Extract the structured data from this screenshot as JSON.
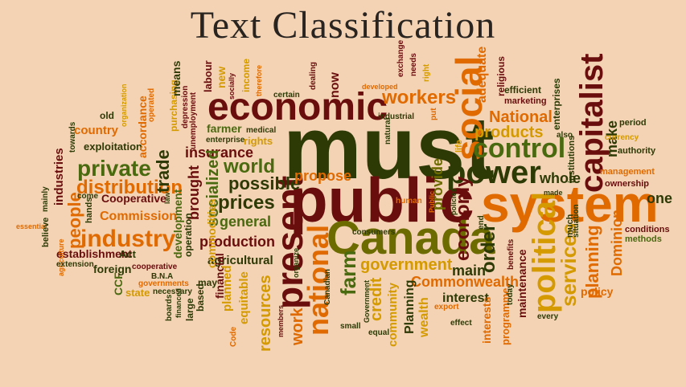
{
  "title": "Text Classification",
  "colors": {
    "background": "#f3d3b4",
    "dark_green": "#2e3a06",
    "olive": "#6b6b00",
    "dark_red": "#6a0d0d",
    "orange": "#e06a00",
    "gold": "#d49a00",
    "green": "#4a6a10"
  },
  "words": [
    {
      "text": "must",
      "color": "#2e3a06"
    },
    {
      "text": "system",
      "color": "#e06a00"
    },
    {
      "text": "public",
      "color": "#6a0d0d"
    },
    {
      "text": "Canada",
      "color": "#6b6b00"
    },
    {
      "text": "economic",
      "color": "#6a0d0d"
    },
    {
      "text": "social",
      "color": "#e06a00"
    },
    {
      "text": "power",
      "color": "#2e3a06"
    },
    {
      "text": "control",
      "color": "#4a6a10"
    },
    {
      "text": "present",
      "color": "#6a0d0d"
    },
    {
      "text": "capitalist",
      "color": "#6a0d0d"
    },
    {
      "text": "political",
      "color": "#d49a00"
    },
    {
      "text": "national",
      "color": "#e06a00"
    },
    {
      "text": "industry",
      "color": "#e06a00"
    },
    {
      "text": "private",
      "color": "#4a6a10"
    },
    {
      "text": "distribution",
      "color": "#e06a00"
    },
    {
      "text": "workers",
      "color": "#e06a00"
    },
    {
      "text": "government",
      "color": "#d49a00"
    },
    {
      "text": "Commonwealth",
      "color": "#e06a00"
    },
    {
      "text": "world",
      "color": "#4a6a10"
    },
    {
      "text": "possible",
      "color": "#2e3a06"
    },
    {
      "text": "prices",
      "color": "#2e3a06"
    },
    {
      "text": "services",
      "color": "#d49a00"
    },
    {
      "text": "production",
      "color": "#6a0d0d"
    },
    {
      "text": "National",
      "color": "#e06a00"
    },
    {
      "text": "products",
      "color": "#d49a00"
    },
    {
      "text": "planning",
      "color": "#e06a00"
    },
    {
      "text": "economy",
      "color": "#6a0d0d"
    },
    {
      "text": "order",
      "color": "#2e3a06"
    },
    {
      "text": "farm",
      "color": "#4a6a10"
    },
    {
      "text": "trade",
      "color": "#2e3a06"
    },
    {
      "text": "insurance",
      "color": "#6a0d0d"
    },
    {
      "text": "socialized",
      "color": "#4a6a10"
    },
    {
      "text": "brought",
      "color": "#6a0d0d"
    },
    {
      "text": "propose",
      "color": "#e06a00"
    },
    {
      "text": "general",
      "color": "#4a6a10"
    },
    {
      "text": "people",
      "color": "#e06a00"
    },
    {
      "text": "whole",
      "color": "#2e3a06"
    },
    {
      "text": "credit",
      "color": "#d49a00"
    },
    {
      "text": "work",
      "color": "#e06a00"
    },
    {
      "text": "resources",
      "color": "#d49a00"
    },
    {
      "text": "main",
      "color": "#2e3a06"
    },
    {
      "text": "interest",
      "color": "#2e3a06"
    },
    {
      "text": "one",
      "color": "#2e3a06"
    },
    {
      "text": "Dominion",
      "color": "#e06a00"
    },
    {
      "text": "make",
      "color": "#2e3a06"
    },
    {
      "text": "provide",
      "color": "#6b6b00"
    },
    {
      "text": "adequate",
      "color": "#e06a00"
    },
    {
      "text": "now",
      "color": "#6a0d0d"
    },
    {
      "text": "Commission",
      "color": "#e06a00"
    },
    {
      "text": "Cooperative",
      "color": "#6a0d0d"
    },
    {
      "text": "exploitation",
      "color": "#2e3a06"
    },
    {
      "text": "country",
      "color": "#e06a00"
    },
    {
      "text": "industries",
      "color": "#6a0d0d"
    },
    {
      "text": "establishment",
      "color": "#6a0d0d"
    },
    {
      "text": "agricultural",
      "color": "#2e3a06"
    },
    {
      "text": "financial",
      "color": "#6a0d0d"
    },
    {
      "text": "planned",
      "color": "#d49a00"
    },
    {
      "text": "equitable",
      "color": "#d49a00"
    },
    {
      "text": "commodities",
      "color": "#d49a00"
    },
    {
      "text": "development",
      "color": "#4a6a10"
    },
    {
      "text": "wealth",
      "color": "#d49a00"
    },
    {
      "text": "community",
      "color": "#d49a00"
    },
    {
      "text": "Planning",
      "color": "#2e3a06"
    },
    {
      "text": "policy",
      "color": "#e06a00"
    },
    {
      "text": "maintenance",
      "color": "#6a0d0d"
    },
    {
      "text": "programme",
      "color": "#e06a00"
    },
    {
      "text": "interests",
      "color": "#e06a00"
    },
    {
      "text": "accordance",
      "color": "#e06a00"
    },
    {
      "text": "purchasing",
      "color": "#d49a00"
    },
    {
      "text": "means",
      "color": "#2e3a06"
    },
    {
      "text": "CCF",
      "color": "#4a6a10"
    },
    {
      "text": "foreign",
      "color": "#2e3a06"
    },
    {
      "text": "Act",
      "color": "#2e3a06"
    },
    {
      "text": "state",
      "color": "#d49a00"
    },
    {
      "text": "rights",
      "color": "#d49a00"
    },
    {
      "text": "farmer",
      "color": "#4a6a10"
    },
    {
      "text": "labour",
      "color": "#6a0d0d"
    },
    {
      "text": "new",
      "color": "#d49a00"
    },
    {
      "text": "income",
      "color": "#d49a00"
    },
    {
      "text": "enterprises",
      "color": "#2e3a06"
    },
    {
      "text": "religious",
      "color": "#6a0d0d"
    },
    {
      "text": "efficient",
      "color": "#2e3a06"
    },
    {
      "text": "marketing",
      "color": "#6a0d0d"
    },
    {
      "text": "authority",
      "color": "#2e3a06"
    },
    {
      "text": "ownership",
      "color": "#6a0d0d"
    },
    {
      "text": "management",
      "color": "#e06a00"
    },
    {
      "text": "conditions",
      "color": "#6a0d0d"
    },
    {
      "text": "methods",
      "color": "#4a6a10"
    },
    {
      "text": "period",
      "color": "#2e3a06"
    },
    {
      "text": "currency",
      "color": "#d49a00"
    },
    {
      "text": "institutions",
      "color": "#2e3a06"
    },
    {
      "text": "also",
      "color": "#2e3a06"
    },
    {
      "text": "much",
      "color": "#2e3a06"
    },
    {
      "text": "situation",
      "color": "#2e3a06"
    },
    {
      "text": "every",
      "color": "#2e3a06"
    },
    {
      "text": "today",
      "color": "#2e3a06"
    },
    {
      "text": "benefits",
      "color": "#6a0d0d"
    },
    {
      "text": "effect",
      "color": "#2e3a06"
    },
    {
      "text": "export",
      "color": "#e06a00"
    },
    {
      "text": "equal",
      "color": "#2e3a06"
    },
    {
      "text": "Government",
      "color": "#2e3a06"
    },
    {
      "text": "small",
      "color": "#2e3a06"
    },
    {
      "text": "Canadian",
      "color": "#2e3a06"
    },
    {
      "text": "organize",
      "color": "#2e3a06"
    },
    {
      "text": "members",
      "color": "#6a0d0d"
    },
    {
      "text": "consumers",
      "color": "#2e3a06"
    },
    {
      "text": "policies",
      "color": "#2e3a06"
    },
    {
      "text": "Public",
      "color": "#e06a00"
    },
    {
      "text": "human",
      "color": "#e06a00"
    },
    {
      "text": "life",
      "color": "#d49a00"
    },
    {
      "text": "put",
      "color": "#e06a00"
    },
    {
      "text": "natural",
      "color": "#2e3a06"
    },
    {
      "text": "industrial",
      "color": "#2e3a06"
    },
    {
      "text": "exchange",
      "color": "#6a0d0d"
    },
    {
      "text": "needs",
      "color": "#6a0d0d"
    },
    {
      "text": "right",
      "color": "#d49a00"
    },
    {
      "text": "developed",
      "color": "#e06a00"
    },
    {
      "text": "dealing",
      "color": "#6a0d0d"
    },
    {
      "text": "certain",
      "color": "#2e3a06"
    },
    {
      "text": "therefore",
      "color": "#e06a00"
    },
    {
      "text": "socially",
      "color": "#6a0d0d"
    },
    {
      "text": "enterprise",
      "color": "#2e3a06"
    },
    {
      "text": "medical",
      "color": "#2e3a06"
    },
    {
      "text": "unemployment",
      "color": "#6a0d0d"
    },
    {
      "text": "depression",
      "color": "#6a0d0d"
    },
    {
      "text": "operated",
      "color": "#e06a00"
    },
    {
      "text": "organization",
      "color": "#d49a00"
    },
    {
      "text": "old",
      "color": "#2e3a06"
    },
    {
      "text": "towards",
      "color": "#2e3a06"
    },
    {
      "text": "mainly",
      "color": "#2e3a06"
    },
    {
      "text": "come",
      "color": "#2e3a06"
    },
    {
      "text": "essential",
      "color": "#e06a00"
    },
    {
      "text": "believe",
      "color": "#2e3a06"
    },
    {
      "text": "agriculture",
      "color": "#e06a00"
    },
    {
      "text": "extension",
      "color": "#2e3a06"
    },
    {
      "text": "hands",
      "color": "#2e3a06"
    },
    {
      "text": "law",
      "color": "#2e3a06"
    },
    {
      "text": "cooperative",
      "color": "#6a0d0d"
    },
    {
      "text": "B.N.A",
      "color": "#2e3a06"
    },
    {
      "text": "governments",
      "color": "#e06a00"
    },
    {
      "text": "necessary",
      "color": "#2e3a06"
    },
    {
      "text": "boards",
      "color": "#2e3a06"
    },
    {
      "text": "financed",
      "color": "#2e3a06"
    },
    {
      "text": "large",
      "color": "#2e3a06"
    },
    {
      "text": "based",
      "color": "#2e3a06"
    },
    {
      "text": "may",
      "color": "#2e3a06"
    },
    {
      "text": "Code",
      "color": "#e06a00"
    },
    {
      "text": "operation",
      "color": "#2e3a06"
    },
    {
      "text": "end",
      "color": "#2e3a06"
    },
    {
      "text": "made",
      "color": "#2e3a06"
    }
  ]
}
